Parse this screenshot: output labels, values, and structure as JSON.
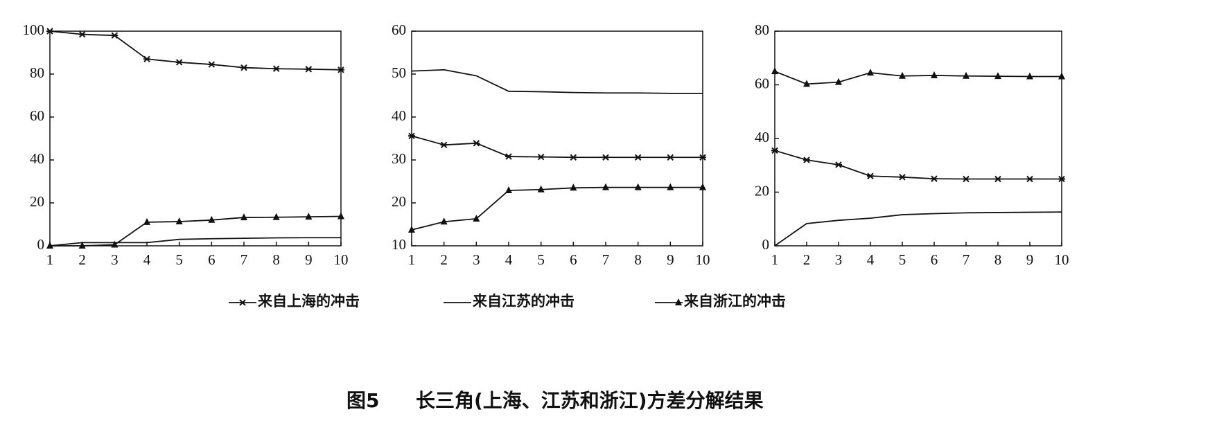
{
  "chart_data": [
    {
      "type": "line",
      "x": [
        1,
        2,
        3,
        4,
        5,
        6,
        7,
        8,
        9,
        10
      ],
      "xlim": [
        1,
        10
      ],
      "xticks": [
        1,
        2,
        3,
        4,
        5,
        6,
        7,
        8,
        9,
        10
      ],
      "ylim": [
        0,
        100
      ],
      "yticks": [
        0,
        20,
        40,
        60,
        80,
        100
      ],
      "series": [
        {
          "name": "来自上海的冲击",
          "color": "#111111",
          "marker": "x",
          "values": [
            100,
            98.5,
            98,
            87,
            85.5,
            84.5,
            83,
            82.5,
            82.3,
            82
          ]
        },
        {
          "name": "来自江苏的冲击",
          "color": "#111111",
          "marker": "none",
          "values": [
            0,
            1.5,
            1.5,
            1.5,
            3,
            3.3,
            3.5,
            3.7,
            3.8,
            3.8
          ]
        },
        {
          "name": "来自浙江的冲击",
          "color": "#111111",
          "marker": "triangle",
          "values": [
            0,
            0,
            0.5,
            11,
            11.3,
            12,
            13.2,
            13.3,
            13.5,
            13.7
          ]
        }
      ]
    },
    {
      "type": "line",
      "x": [
        1,
        2,
        3,
        4,
        5,
        6,
        7,
        8,
        9,
        10
      ],
      "xlim": [
        1,
        10
      ],
      "xticks": [
        1,
        2,
        3,
        4,
        5,
        6,
        7,
        8,
        9,
        10
      ],
      "ylim": [
        10,
        60
      ],
      "yticks": [
        10,
        20,
        30,
        40,
        50,
        60
      ],
      "series": [
        {
          "name": "来自上海的冲击",
          "color": "#111111",
          "marker": "x",
          "values": [
            35.6,
            33.5,
            33.9,
            30.8,
            30.7,
            30.6,
            30.6,
            30.6,
            30.6,
            30.6
          ]
        },
        {
          "name": "来自江苏的冲击",
          "color": "#111111",
          "marker": "none",
          "values": [
            50.7,
            51,
            49.6,
            46,
            45.9,
            45.7,
            45.6,
            45.6,
            45.5,
            45.5
          ]
        },
        {
          "name": "来自浙江的冲击",
          "color": "#111111",
          "marker": "triangle",
          "values": [
            13.7,
            15.6,
            16.3,
            22.9,
            23.1,
            23.5,
            23.6,
            23.6,
            23.6,
            23.6
          ]
        }
      ]
    },
    {
      "type": "line",
      "x": [
        1,
        2,
        3,
        4,
        5,
        6,
        7,
        8,
        9,
        10
      ],
      "xlim": [
        1,
        10
      ],
      "xticks": [
        1,
        2,
        3,
        4,
        5,
        6,
        7,
        8,
        9,
        10
      ],
      "ylim": [
        0,
        80
      ],
      "yticks": [
        0,
        20,
        40,
        60,
        80
      ],
      "series": [
        {
          "name": "来自上海的冲击",
          "color": "#111111",
          "marker": "x",
          "values": [
            35.5,
            32,
            30.2,
            26,
            25.6,
            25,
            24.9,
            24.9,
            24.9,
            24.9
          ]
        },
        {
          "name": "来自江苏的冲击",
          "color": "#111111",
          "marker": "none",
          "values": [
            0,
            8.3,
            9.5,
            10.3,
            11.6,
            12,
            12.3,
            12.4,
            12.5,
            12.6
          ]
        },
        {
          "name": "来自浙江的冲击",
          "color": "#111111",
          "marker": "triangle",
          "values": [
            65,
            60.3,
            61,
            64.5,
            63.3,
            63.5,
            63.3,
            63.2,
            63.1,
            63.1
          ]
        }
      ]
    }
  ],
  "caption": {
    "label": "图5",
    "text": "长三角(上海、江苏和浙江)方差分解结果"
  }
}
